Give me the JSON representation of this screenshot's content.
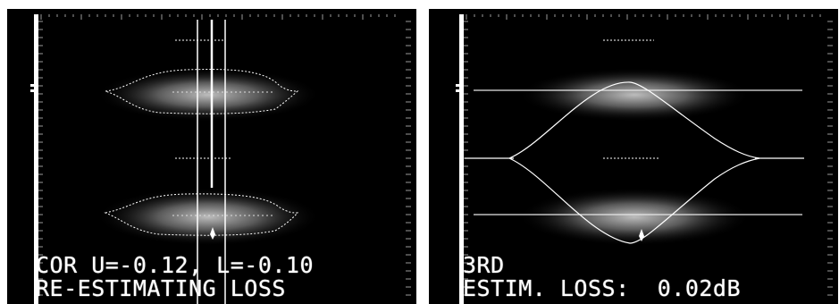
{
  "left_screen": {
    "line1": "COR U=-0.12, L=-0.10",
    "line2": "RE-ESTIMATING LOSS"
  },
  "right_screen": {
    "line1": "3RD",
    "line2": "ESTIM. LOSS:  0.02dB"
  },
  "colors": {
    "screen_background": "#000000",
    "trace": "#ffffff",
    "page_background": "#ffffff"
  }
}
